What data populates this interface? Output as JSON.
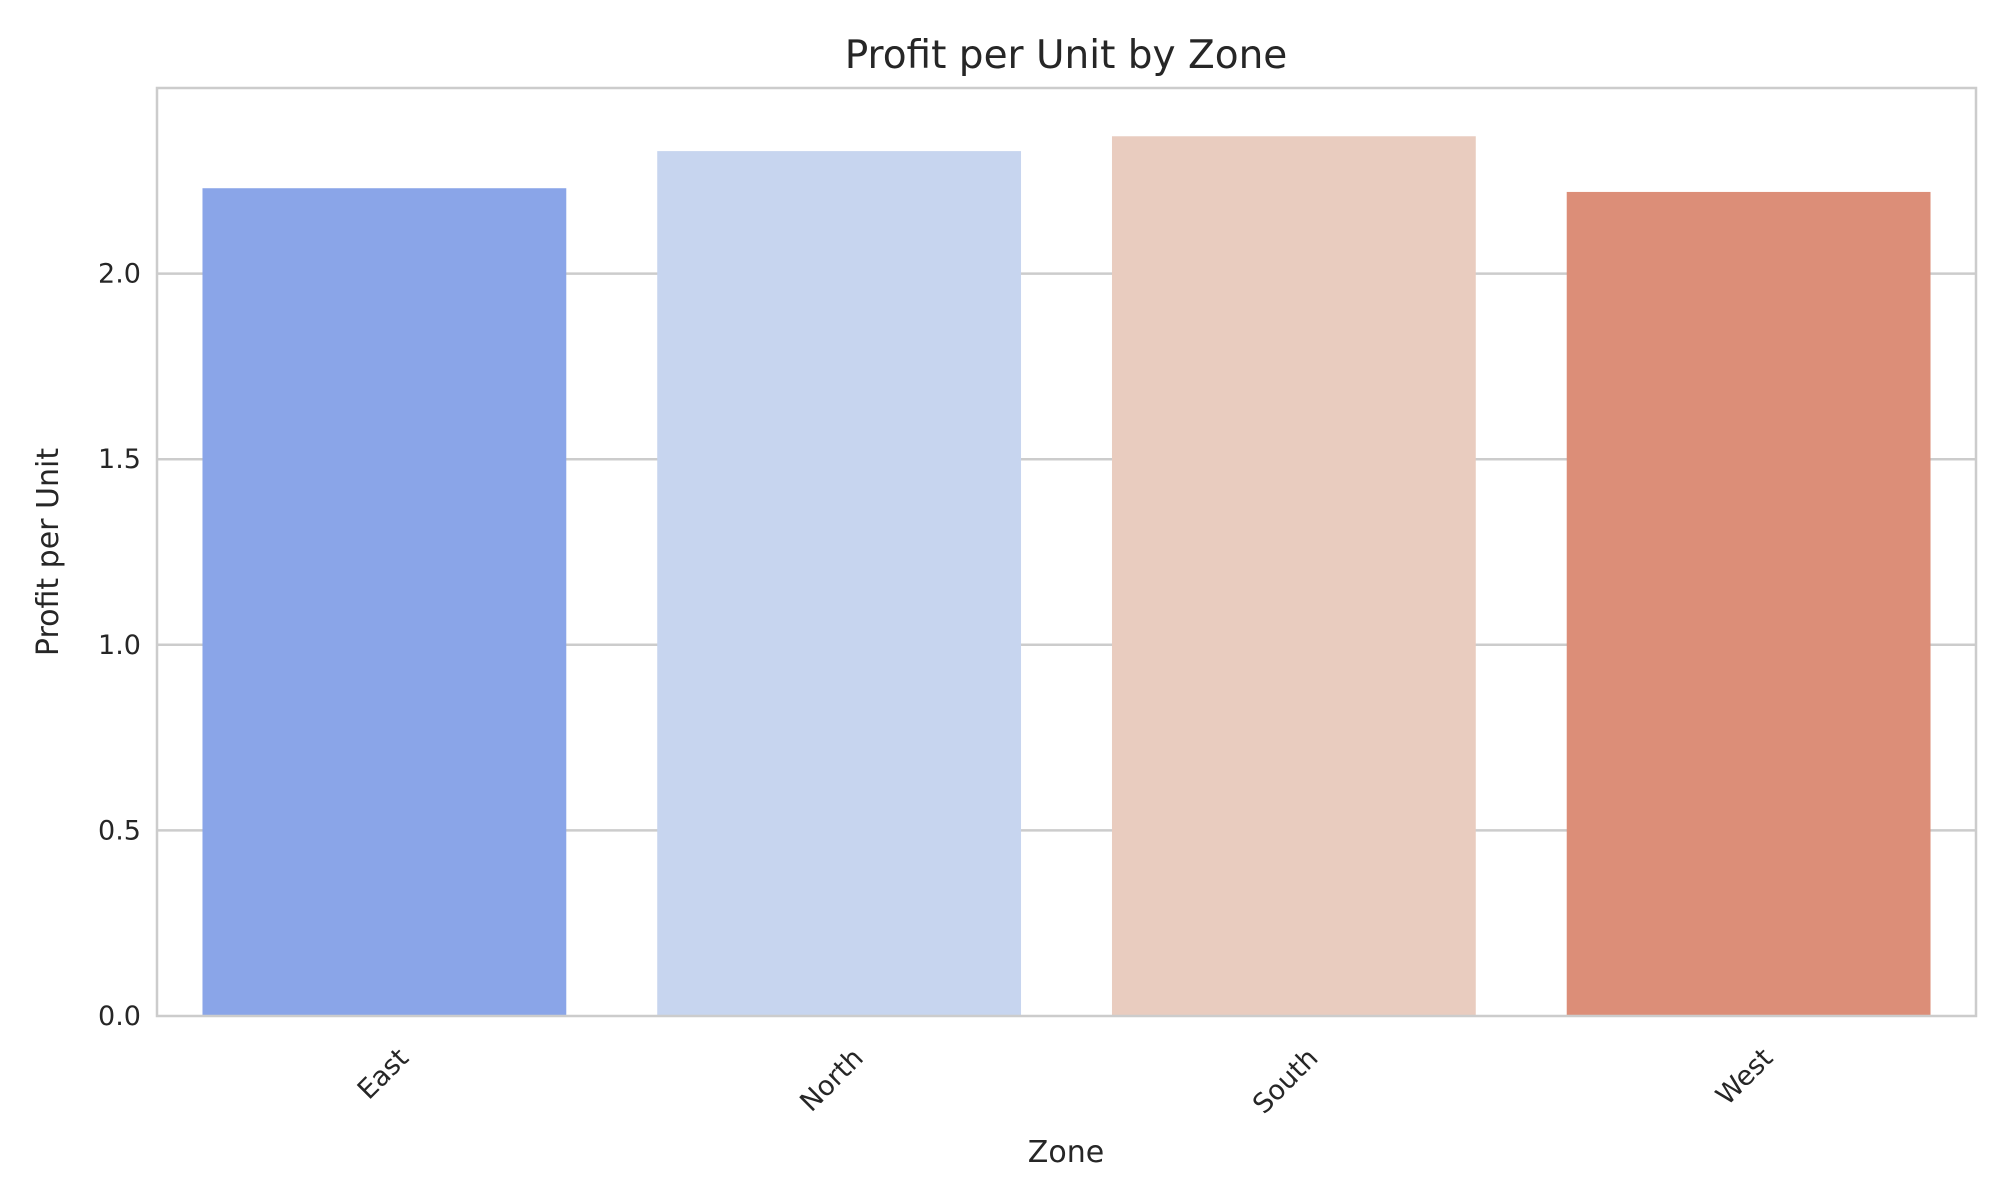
{
  "chart_data": {
    "type": "bar",
    "title": "Profit per Unit by Zone",
    "xlabel": "Zone",
    "ylabel": "Profit per Unit",
    "categories": [
      "East",
      "North",
      "South",
      "West"
    ],
    "values": [
      2.23,
      2.33,
      2.37,
      2.22
    ],
    "colors": [
      "#8aa5e8",
      "#c7d5ef",
      "#e9ccbf",
      "#dc8e78"
    ],
    "ylim": [
      0,
      2.5
    ],
    "yticks": [
      0.0,
      0.5,
      1.0,
      1.5,
      2.0
    ],
    "ytick_labels": [
      "0.0",
      "0.5",
      "1.0",
      "1.5",
      "2.0"
    ],
    "grid": "y",
    "legend": "none",
    "xtick_rotation": -45
  }
}
